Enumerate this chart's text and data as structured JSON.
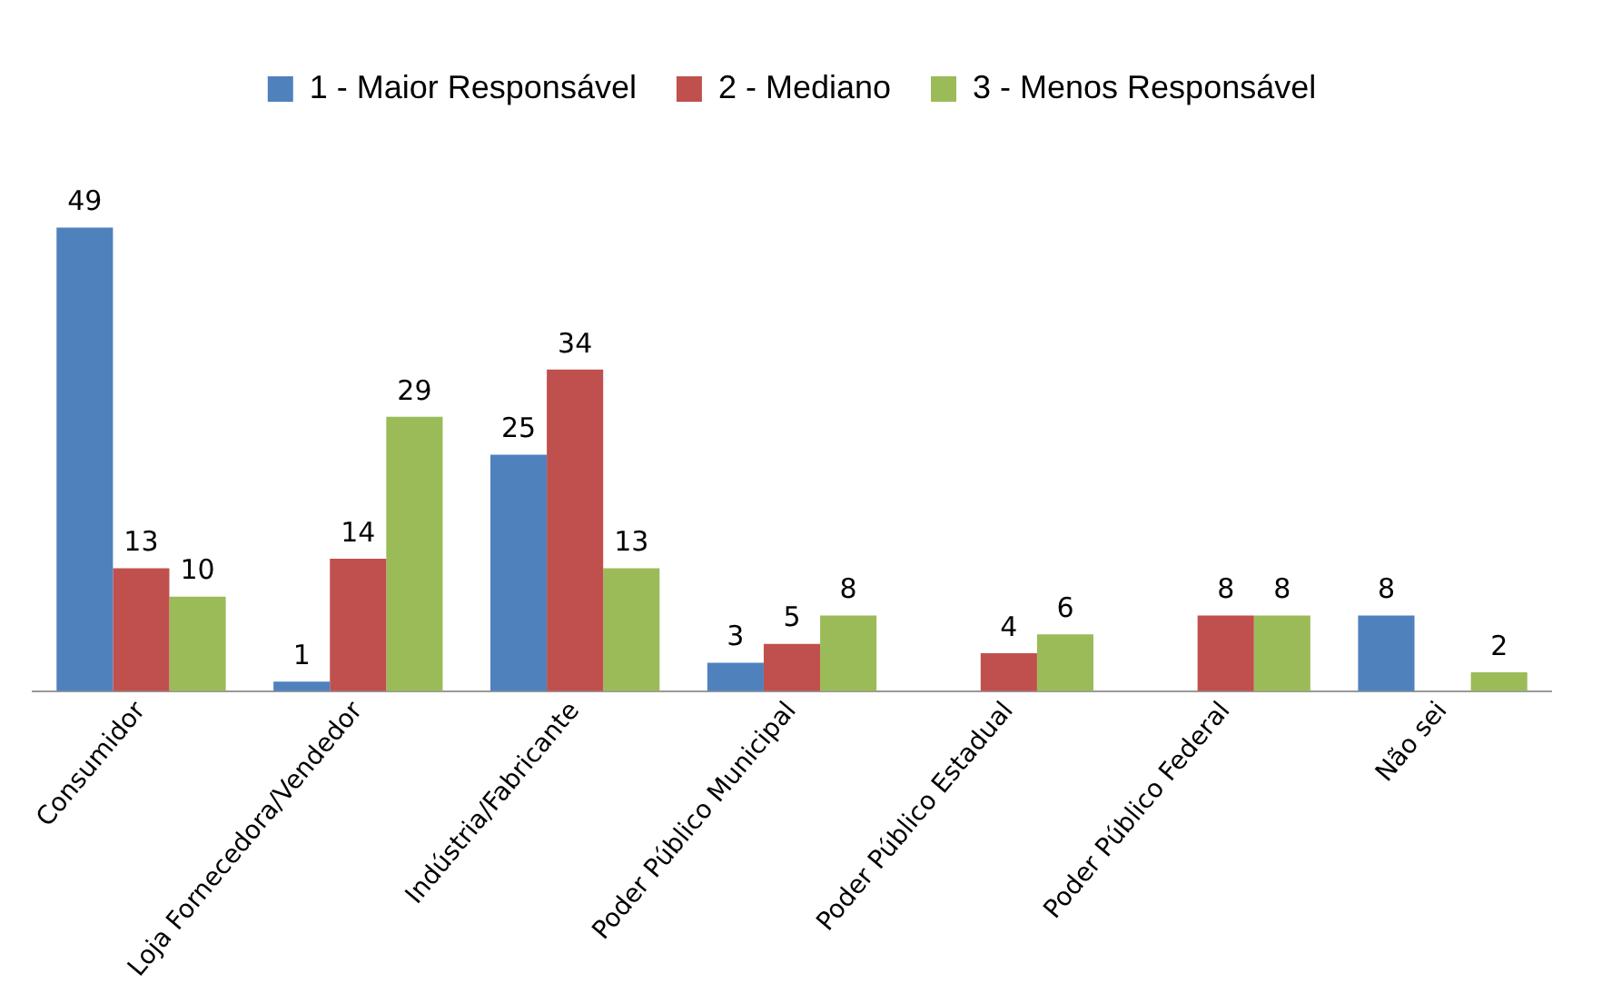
{
  "chart_data": {
    "type": "bar",
    "categories": [
      "Consumidor",
      "Loja Fornecedora/Vendedor",
      "Indústria/Fabricante",
      "Poder Público Municipal",
      "Poder Público Estadual",
      "Poder Público Federal",
      "Não sei"
    ],
    "series": [
      {
        "name": "1 - Maior Responsável",
        "color": "#4f81bd",
        "values": [
          49,
          1,
          25,
          3,
          null,
          null,
          8
        ]
      },
      {
        "name": "2 - Mediano",
        "color": "#c0504d",
        "values": [
          13,
          14,
          34,
          5,
          4,
          8,
          null
        ]
      },
      {
        "name": "3 - Menos Responsável",
        "color": "#9bbb59",
        "values": [
          10,
          29,
          13,
          8,
          6,
          8,
          2
        ]
      }
    ],
    "data_labels": true,
    "legend": "top",
    "grid": false
  }
}
